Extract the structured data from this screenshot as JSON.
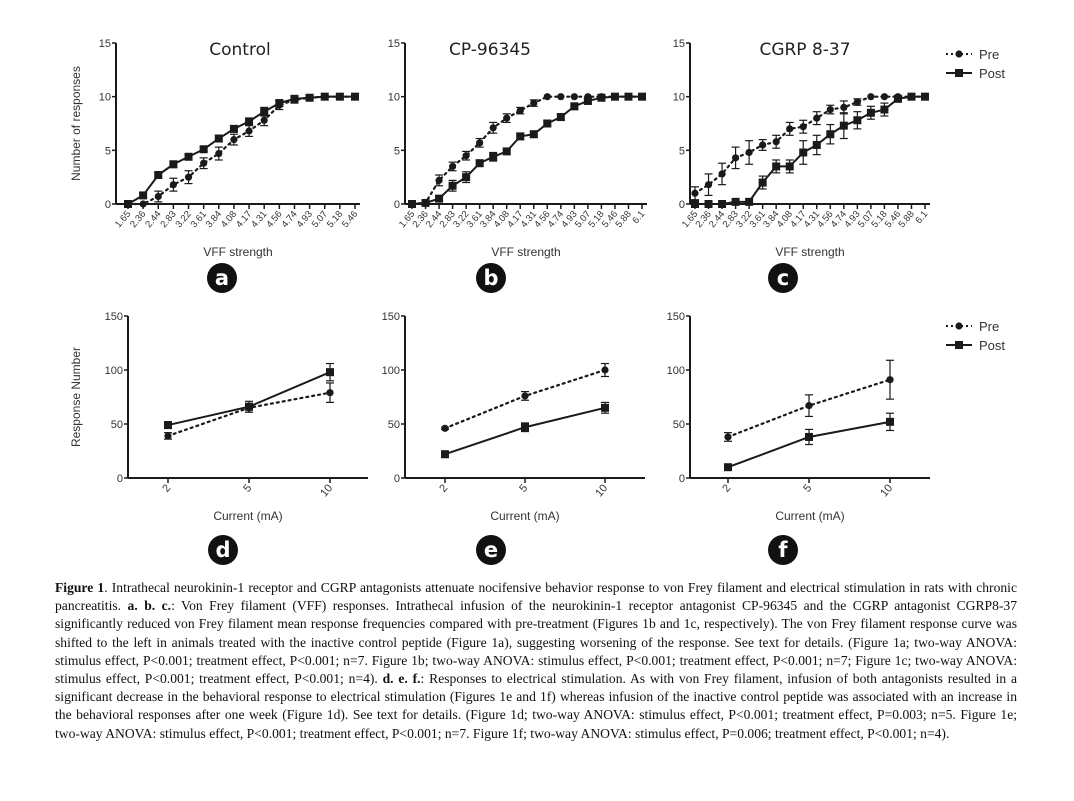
{
  "legend": {
    "pre": "Pre",
    "post": "Post"
  },
  "colors": {
    "line": "#1a1a1a",
    "badge": "#111111",
    "badge_text": "#ffffff"
  },
  "chart_data": [
    {
      "id": "a",
      "badge": "a",
      "type": "line",
      "title": "Control",
      "xlabel": "VFF strength",
      "ylabel": "Number of responses",
      "ylim": [
        0,
        15
      ],
      "yticks": [
        0,
        5,
        10,
        15
      ],
      "categories": [
        "1.65",
        "2.36",
        "2.44",
        "2.83",
        "3.22",
        "3.61",
        "3.84",
        "4.08",
        "4.17",
        "4.31",
        "4.56",
        "4.74",
        "4.93",
        "5.07",
        "5.18",
        "5.46"
      ],
      "series": [
        {
          "name": "Pre",
          "style": "dotted",
          "marker": "circle",
          "values": [
            0,
            0,
            0.7,
            1.8,
            2.5,
            3.8,
            4.7,
            6.0,
            6.8,
            7.8,
            9.2,
            9.7,
            9.9,
            10,
            10,
            10
          ],
          "errors": [
            0,
            0,
            0.5,
            0.6,
            0.6,
            0.5,
            0.6,
            0.5,
            0.5,
            0.5,
            0.4,
            0.3,
            0.2,
            0,
            0,
            0
          ]
        },
        {
          "name": "Post",
          "style": "solid",
          "marker": "square",
          "values": [
            0,
            0.8,
            2.7,
            3.7,
            4.4,
            5.1,
            6.1,
            7.0,
            7.7,
            8.6,
            9.4,
            9.8,
            9.9,
            10,
            10,
            10
          ],
          "errors": [
            0,
            0.2,
            0.2,
            0.3,
            0.2,
            0.2,
            0.3,
            0.3,
            0.3,
            0.4,
            0.3,
            0.2,
            0.1,
            0,
            0,
            0
          ]
        }
      ]
    },
    {
      "id": "b",
      "badge": "b",
      "type": "line",
      "title": "CP-96345",
      "xlabel": "VFF strength",
      "ylabel": "",
      "ylim": [
        0,
        15
      ],
      "yticks": [
        0,
        5,
        10,
        15
      ],
      "categories": [
        "1.65",
        "2.36",
        "2.44",
        "2.83",
        "3.22",
        "3.61",
        "3.84",
        "4.08",
        "4.17",
        "4.31",
        "4.56",
        "4.74",
        "4.93",
        "5.07",
        "5.18",
        "5.46",
        "5.88",
        "6.1"
      ],
      "series": [
        {
          "name": "Pre",
          "style": "dotted",
          "marker": "circle",
          "values": [
            0,
            0.1,
            2.2,
            3.5,
            4.5,
            5.7,
            7.1,
            8.0,
            8.7,
            9.4,
            10,
            10,
            10,
            10,
            10,
            10,
            10,
            10
          ],
          "errors": [
            0,
            0.1,
            0.5,
            0.4,
            0.4,
            0.4,
            0.5,
            0.4,
            0.3,
            0.3,
            0,
            0,
            0,
            0,
            0,
            0,
            0,
            0
          ]
        },
        {
          "name": "Post",
          "style": "solid",
          "marker": "square",
          "values": [
            0,
            0.1,
            0.5,
            1.7,
            2.5,
            3.8,
            4.4,
            4.9,
            6.3,
            6.5,
            7.5,
            8.1,
            9.1,
            9.6,
            9.9,
            10,
            10,
            10
          ],
          "errors": [
            0,
            0,
            0.2,
            0.5,
            0.5,
            0.3,
            0.4,
            0.2,
            0.3,
            0.3,
            0.2,
            0.3,
            0.3,
            0.2,
            0.1,
            0,
            0,
            0
          ]
        }
      ]
    },
    {
      "id": "c",
      "badge": "c",
      "type": "line",
      "title": "CGRP 8-37",
      "xlabel": "VFF strength",
      "ylabel": "",
      "ylim": [
        0,
        15
      ],
      "yticks": [
        0,
        5,
        10,
        15
      ],
      "categories": [
        "1.65",
        "2.36",
        "2.44",
        "2.83",
        "3.22",
        "3.61",
        "3.84",
        "4.08",
        "4.17",
        "4.31",
        "4.56",
        "4.74",
        "4.93",
        "5.07",
        "5.18",
        "5.46",
        "5.88",
        "6.1"
      ],
      "legend_position": "top-right",
      "series": [
        {
          "name": "Pre",
          "style": "dotted",
          "marker": "circle",
          "values": [
            1.0,
            1.8,
            2.8,
            4.3,
            4.8,
            5.5,
            5.8,
            7.0,
            7.2,
            8.0,
            8.8,
            9.0,
            9.5,
            10,
            10,
            10,
            10,
            10
          ],
          "errors": [
            0.6,
            1.0,
            1.0,
            1.0,
            1.1,
            0.5,
            0.6,
            0.6,
            0.6,
            0.6,
            0.4,
            0.6,
            0.3,
            0,
            0,
            0,
            0,
            0
          ]
        },
        {
          "name": "Post",
          "style": "solid",
          "marker": "square",
          "values": [
            0,
            0,
            0,
            0.2,
            0.2,
            2.0,
            3.5,
            3.5,
            4.8,
            5.5,
            6.5,
            7.3,
            7.8,
            8.5,
            8.8,
            9.8,
            10,
            10
          ],
          "errors": [
            0,
            0,
            0,
            0,
            0,
            0.6,
            0.6,
            0.6,
            1.1,
            0.9,
            0.9,
            1.2,
            0.8,
            0.6,
            0.6,
            0.2,
            0,
            0
          ]
        }
      ]
    },
    {
      "id": "d",
      "badge": "d",
      "type": "line",
      "title": "",
      "xlabel": "Current (mA)",
      "ylabel": "Response Number",
      "ylim": [
        0,
        150
      ],
      "yticks": [
        0,
        50,
        100,
        150
      ],
      "categories": [
        "2",
        "5",
        "10"
      ],
      "series": [
        {
          "name": "Pre",
          "style": "dotted",
          "marker": "circle",
          "values": [
            39,
            65,
            79
          ],
          "errors": [
            3,
            4,
            9
          ]
        },
        {
          "name": "Post",
          "style": "solid",
          "marker": "square",
          "values": [
            49,
            66,
            98
          ],
          "errors": [
            3,
            5,
            8
          ]
        }
      ]
    },
    {
      "id": "e",
      "badge": "e",
      "type": "line",
      "title": "",
      "xlabel": "Current (mA)",
      "ylabel": "",
      "ylim": [
        0,
        150
      ],
      "yticks": [
        0,
        50,
        100,
        150
      ],
      "categories": [
        "2",
        "5",
        "10"
      ],
      "series": [
        {
          "name": "Pre",
          "style": "dotted",
          "marker": "circle",
          "values": [
            46,
            76,
            100
          ],
          "errors": [
            1,
            4,
            6
          ]
        },
        {
          "name": "Post",
          "style": "solid",
          "marker": "square",
          "values": [
            22,
            47,
            65
          ],
          "errors": [
            3,
            4,
            5
          ]
        }
      ]
    },
    {
      "id": "f",
      "badge": "f",
      "type": "line",
      "title": "",
      "xlabel": "Current (mA)",
      "ylabel": "",
      "ylim": [
        0,
        150
      ],
      "yticks": [
        0,
        50,
        100,
        150
      ],
      "categories": [
        "2",
        "5",
        "10"
      ],
      "legend_position": "top-right",
      "series": [
        {
          "name": "Pre",
          "style": "dotted",
          "marker": "circle",
          "values": [
            38,
            67,
            91
          ],
          "errors": [
            4,
            10,
            18
          ]
        },
        {
          "name": "Post",
          "style": "solid",
          "marker": "square",
          "values": [
            10,
            38,
            52
          ],
          "errors": [
            1,
            7,
            8
          ]
        }
      ]
    }
  ],
  "caption": {
    "figure_label": "Figure 1",
    "part1": ". Intrathecal neurokinin-1 receptor and CGRP antagonists attenuate nocifensive behavior response to von Frey filament and electrical stimulation in rats with chronic pancreatitis. ",
    "abc_label": "a. b. c.",
    "part2": ": Von Frey filament (VFF) responses. Intrathecal infusion of the neurokinin-1 receptor antagonist CP-96345 and the CGRP antagonist CGRP8-37 significantly reduced von Frey filament mean response frequencies compared with pre-treatment (Figures 1b and 1c, respectively). The von Frey filament response curve was shifted to the left in animals treated with the inactive control peptide (Figure 1a), suggesting worsening of the response. See text for details. (Figure 1a; two-way ANOVA: stimulus effect, P<0.001; treatment effect, P<0.001; n=7. Figure 1b; two-way ANOVA: stimulus effect, P<0.001; treatment effect, P<0.001; n=7; Figure 1c; two-way ANOVA: stimulus effect, P<0.001; treatment effect, P<0.001; n=4). ",
    "def_label": "d. e. f.",
    "part3": ": Responses to electrical stimulation. As with von Frey filament, infusion of both antagonists resulted in a significant decrease in the behavioral response to electrical stimulation (Figures 1e and 1f) whereas infusion of the inactive control peptide was associated with an increase in the behavioral responses after one week (Figure 1d). See text for details. (Figure 1d; two-way ANOVA: stimulus effect, P<0.001; treatment effect, P=0.003; n=5. Figure 1e; two-way ANOVA: stimulus effect, P<0.001; treatment effect, P<0.001; n=7. Figure 1f; two-way ANOVA: stimulus effect, P=0.006; treatment effect, P<0.001; n=4)."
  }
}
